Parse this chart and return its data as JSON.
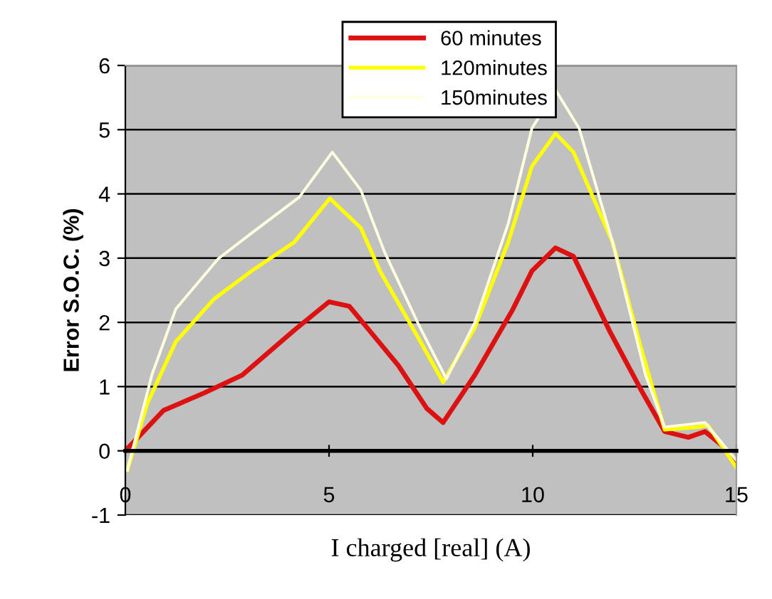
{
  "chart_data": {
    "type": "line",
    "xlabel": "I charged [real] (A)",
    "ylabel": "Error S.O.C. (%)",
    "xlim": [
      0,
      15
    ],
    "xticks": [
      0,
      5,
      10,
      15
    ],
    "ylim": [
      -1,
      6
    ],
    "yticks": [
      -1,
      0,
      1,
      2,
      3,
      4,
      5,
      6
    ],
    "grid": "y",
    "legend": "top",
    "marker": "none",
    "line_style": "solid",
    "series": [
      {
        "name": "60 minutes",
        "color": "#dd1111",
        "x": [
          0,
          0.94,
          1.93,
          2.87,
          4.15,
          5.0,
          5.5,
          6.7,
          7.4,
          7.8,
          8.58,
          9.51,
          9.98,
          10.56,
          11.0,
          11.9,
          12.65,
          13.24,
          13.82,
          14.23,
          14.64,
          15
        ],
        "values": [
          0,
          0.63,
          0.9,
          1.18,
          1.88,
          2.32,
          2.25,
          1.33,
          0.66,
          0.44,
          1.18,
          2.2,
          2.8,
          3.16,
          3.03,
          1.85,
          0.96,
          0.3,
          0.21,
          0.3,
          0.09,
          -0.22
        ]
      },
      {
        "name": "120minutes",
        "color": "#ffff00",
        "x": [
          0.05,
          0.54,
          1.24,
          2.17,
          3.1,
          4.15,
          5.02,
          5.78,
          6.25,
          7.18,
          7.8,
          8.58,
          9.4,
          9.98,
          10.56,
          11.0,
          11.96,
          12.65,
          13.24,
          14.06,
          14.3,
          15
        ],
        "values": [
          -0.3,
          0.74,
          1.7,
          2.36,
          2.8,
          3.25,
          3.93,
          3.47,
          2.8,
          1.77,
          1.07,
          1.92,
          3.25,
          4.43,
          4.94,
          4.65,
          3.25,
          1.62,
          0.33,
          0.37,
          0.4,
          -0.26
        ]
      },
      {
        "name": "150minutes",
        "color": "#ffffe0",
        "x": [
          0.05,
          0.65,
          1.24,
          2.28,
          3.1,
          4.27,
          5.08,
          5.78,
          6.36,
          7.18,
          7.88,
          8.58,
          9.4,
          9.98,
          10.56,
          11.14,
          11.96,
          12.77,
          13.24,
          14.23,
          15
        ],
        "values": [
          -0.3,
          1.18,
          2.21,
          2.99,
          3.39,
          3.95,
          4.65,
          4.06,
          3.1,
          1.99,
          1.12,
          2.0,
          3.54,
          5.02,
          5.62,
          5.02,
          3.25,
          1.18,
          0.37,
          0.44,
          -0.15
        ]
      }
    ]
  }
}
